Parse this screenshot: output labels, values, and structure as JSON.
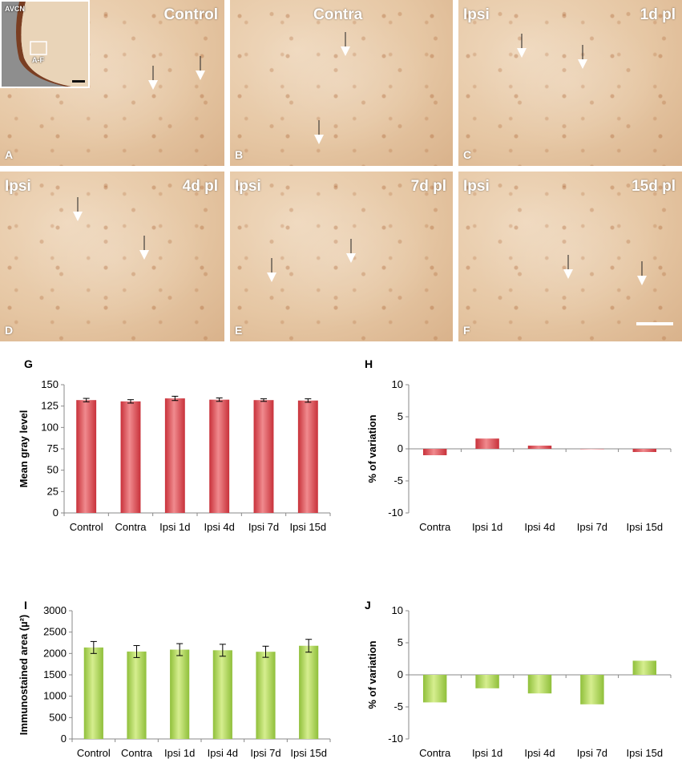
{
  "panels": [
    {
      "id": "A",
      "tl": "",
      "tr": "Control",
      "letter": "A"
    },
    {
      "id": "B",
      "tl": "",
      "tr": "Contra",
      "letter": "B"
    },
    {
      "id": "C",
      "tl": "Ipsi",
      "tr": "1d pl",
      "letter": "C"
    },
    {
      "id": "D",
      "tl": "Ipsi",
      "tr": "4d pl",
      "letter": "D"
    },
    {
      "id": "E",
      "tl": "Ipsi",
      "tr": "7d pl",
      "letter": "E"
    },
    {
      "id": "F",
      "tl": "Ipsi",
      "tr": "15d pl",
      "letter": "F"
    }
  ],
  "inset": {
    "label_top": "AVCN",
    "label_region": "A-F"
  },
  "chart_letters": {
    "G": "G",
    "H": "H",
    "I": "I",
    "J": "J"
  },
  "colors": {
    "red": "#c8313a",
    "red_light": "#f08a8e",
    "green": "#8fbf3a",
    "green_light": "#d6ee8f"
  },
  "chart_data": [
    {
      "id": "G",
      "type": "bar",
      "categories": [
        "Control",
        "Contra",
        "Ipsi 1d",
        "Ipsi 4d",
        "Ipsi 7d",
        "Ipsi 15d"
      ],
      "values": [
        132,
        130.5,
        134,
        132.5,
        132,
        131.5
      ],
      "errors": [
        2,
        2,
        2.5,
        2,
        1.5,
        2
      ],
      "ylabel": "Mean gray level",
      "ylim": [
        0,
        150
      ],
      "yticks": [
        0,
        25,
        50,
        75,
        100,
        125,
        150
      ],
      "color": "red"
    },
    {
      "id": "H",
      "type": "bar",
      "categories": [
        "Contra",
        "Ipsi 1d",
        "Ipsi 4d",
        "Ipsi 7d",
        "Ipsi 15d"
      ],
      "values": [
        -1.0,
        1.6,
        0.5,
        0.0,
        -0.5
      ],
      "ylabel": "% of variation",
      "ylim": [
        -10,
        10
      ],
      "yticks": [
        -10,
        -5,
        0,
        5,
        10
      ],
      "color": "red"
    },
    {
      "id": "I",
      "type": "bar",
      "categories": [
        "Control",
        "Contra",
        "Ipsi 1d",
        "Ipsi 4d",
        "Ipsi 7d",
        "Ipsi 15d"
      ],
      "values": [
        2140,
        2045,
        2090,
        2075,
        2040,
        2180
      ],
      "errors": [
        140,
        140,
        140,
        140,
        130,
        150
      ],
      "ylabel": "Immunostained area (µ²)",
      "ylim": [
        0,
        3000
      ],
      "yticks": [
        0,
        500,
        1000,
        1500,
        2000,
        2500,
        3000
      ],
      "color": "green"
    },
    {
      "id": "J",
      "type": "bar",
      "categories": [
        "Contra",
        "Ipsi 1d",
        "Ipsi 4d",
        "Ipsi 7d",
        "Ipsi 15d"
      ],
      "values": [
        -4.3,
        -2.1,
        -2.9,
        -4.6,
        2.2
      ],
      "ylabel": "% of variation",
      "ylim": [
        -10,
        10
      ],
      "yticks": [
        -10,
        -5,
        0,
        5,
        10
      ],
      "color": "green"
    }
  ]
}
